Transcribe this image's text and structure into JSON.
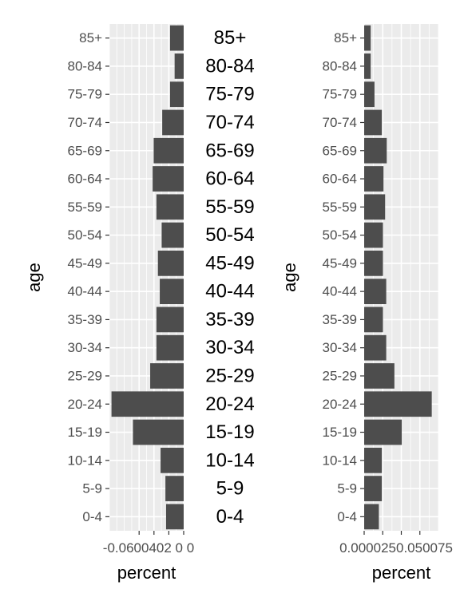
{
  "chart_data": [
    {
      "type": "bar",
      "orientation": "horizontal",
      "panel": "left",
      "categories": [
        "0-4",
        "5-9",
        "10-14",
        "15-19",
        "20-24",
        "25-29",
        "30-34",
        "35-39",
        "40-44",
        "45-49",
        "50-54",
        "55-59",
        "60-64",
        "65-69",
        "70-74",
        "75-79",
        "80-84",
        "85+"
      ],
      "values": [
        -0.0237,
        -0.0246,
        -0.0311,
        -0.0683,
        -0.0972,
        -0.0451,
        -0.0367,
        -0.0367,
        -0.0322,
        -0.0347,
        -0.0297,
        -0.0367,
        -0.0418,
        -0.0404,
        -0.0289,
        -0.0184,
        -0.0122,
        -0.0184
      ],
      "xlabel": "percent",
      "ylabel": "age",
      "xlim": [
        -0.1,
        0.0
      ],
      "xticks": [
        -0.06,
        -0.04,
        -0.02,
        0.0
      ],
      "xtick_labels": "-0.0600402 0 0",
      "grid": true,
      "legend": "none"
    },
    {
      "type": "bar",
      "orientation": "horizontal",
      "panel": "right",
      "categories": [
        "0-4",
        "5-9",
        "10-14",
        "15-19",
        "20-24",
        "25-29",
        "30-34",
        "35-39",
        "40-44",
        "45-49",
        "50-54",
        "55-59",
        "60-64",
        "65-69",
        "70-74",
        "75-79",
        "80-84",
        "85+"
      ],
      "values": [
        0.0198,
        0.0238,
        0.0238,
        0.0506,
        0.091,
        0.0407,
        0.0297,
        0.0253,
        0.0297,
        0.0253,
        0.0253,
        0.0282,
        0.026,
        0.0304,
        0.0238,
        0.0139,
        0.0088,
        0.0088
      ],
      "xlabel": "percent",
      "ylabel": "age",
      "xlim": [
        0.0,
        0.1
      ],
      "xticks": [
        0.0,
        0.025,
        0.05,
        0.075
      ],
      "xtick_labels": "0.0000250.050075",
      "grid": true,
      "legend": "none"
    }
  ],
  "middle_labels": [
    "0-4",
    "5-9",
    "10-14",
    "15-19",
    "20-24",
    "25-29",
    "30-34",
    "35-39",
    "40-44",
    "45-49",
    "50-54",
    "55-59",
    "60-64",
    "65-69",
    "70-74",
    "75-79",
    "80-84",
    "85+"
  ],
  "colors": {
    "panel_bg": "#EBEBEB",
    "grid": "#FFFFFF",
    "bar": "#4D4D4D",
    "tick_text": "#4D4D4D",
    "title_text": "#000000"
  }
}
